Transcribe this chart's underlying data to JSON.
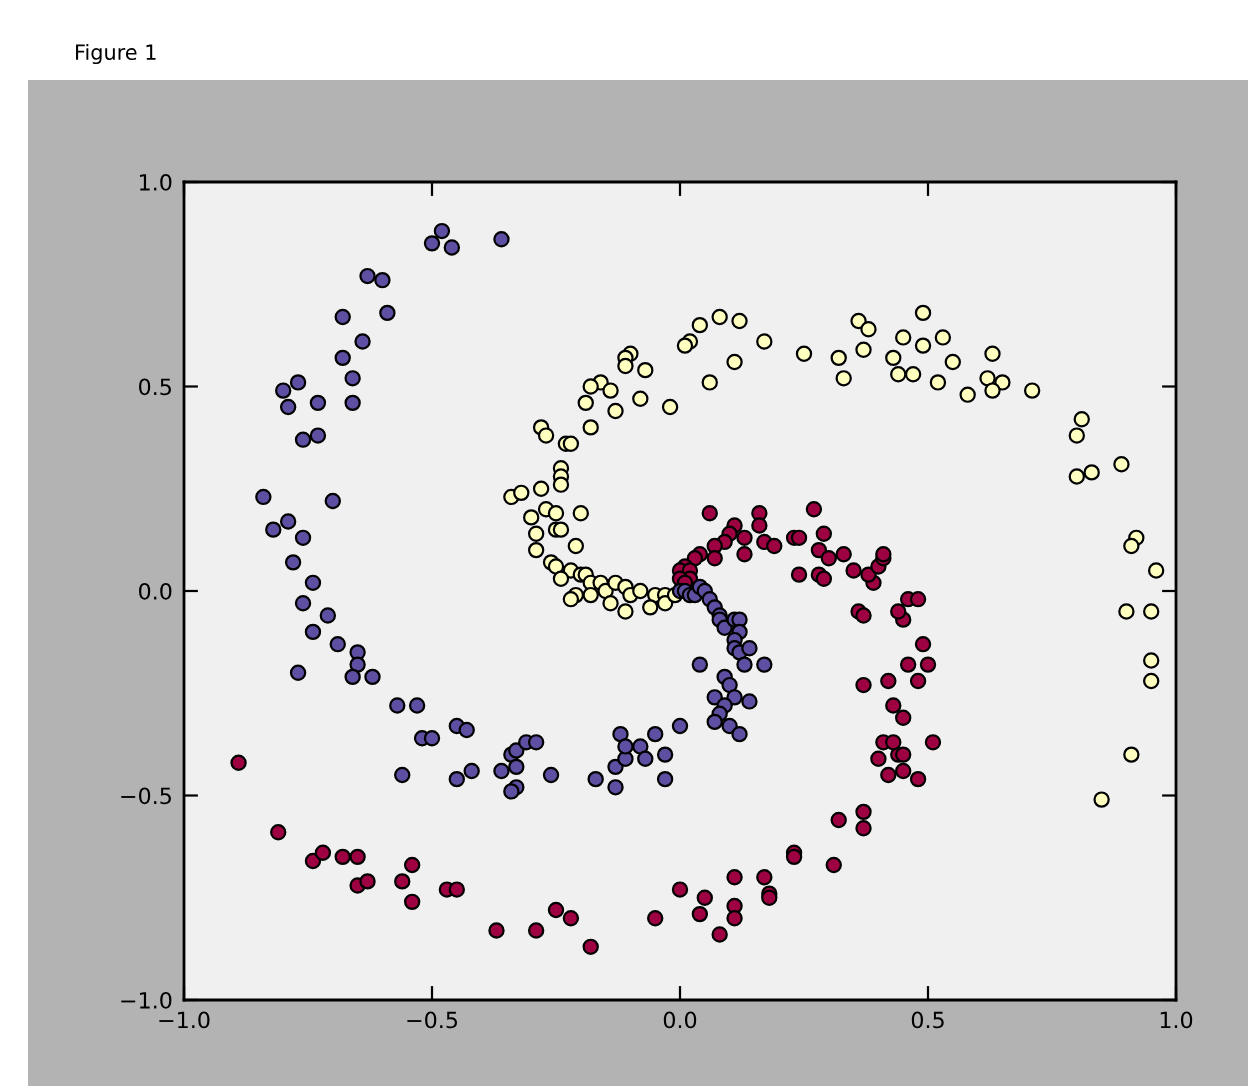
{
  "chart_data": {
    "type": "scatter",
    "annotations": [
      "Figure 1"
    ],
    "xlim": [
      -1.0,
      1.0
    ],
    "ylim": [
      -1.0,
      1.0
    ],
    "xticks": [
      {
        "value": -1.0,
        "label": "−1.0"
      },
      {
        "value": -0.5,
        "label": "−0.5"
      },
      {
        "value": 0.0,
        "label": "0.0"
      },
      {
        "value": 0.5,
        "label": "0.5"
      },
      {
        "value": 1.0,
        "label": "1.0"
      }
    ],
    "yticks": [
      {
        "value": -1.0,
        "label": "−1.0"
      },
      {
        "value": -0.5,
        "label": "−0.5"
      },
      {
        "value": 0.0,
        "label": "0.0"
      },
      {
        "value": 0.5,
        "label": "0.5"
      },
      {
        "value": 1.0,
        "label": "1.0"
      }
    ],
    "marker": "circle",
    "grid": false,
    "series": [
      {
        "color": "#9e0142",
        "x": [
          -0.89,
          -0.81,
          -0.74,
          -0.72,
          -0.68,
          -0.65,
          -0.65,
          -0.63,
          -0.56,
          -0.54,
          -0.54,
          -0.47,
          -0.45,
          -0.37,
          -0.29,
          -0.25,
          -0.22,
          -0.18,
          -0.05,
          0.0,
          0.04,
          0.05,
          0.08,
          0.11,
          0.11,
          0.11,
          0.17,
          0.18,
          0.18,
          0.23,
          0.23,
          0.31,
          0.32,
          0.37,
          0.37,
          0.42,
          0.45,
          0.48,
          0.4,
          0.44,
          0.45,
          0.41,
          0.43,
          0.51,
          0.45,
          0.43,
          0.37,
          0.42,
          0.48,
          0.46,
          0.5,
          0.49,
          0.45,
          0.44,
          0.36,
          0.37,
          0.46,
          0.48,
          0.39,
          0.33,
          0.35,
          0.38,
          0.4,
          0.41,
          0.41,
          0.06,
          0.16,
          0.16,
          0.27,
          0.11,
          0.1,
          0.13,
          0.09,
          0.07,
          0.07,
          0.13,
          0.17,
          0.19,
          0.23,
          0.24,
          0.29,
          0.28,
          0.3,
          0.24,
          0.28,
          0.29,
          0.04,
          0.03,
          0.01,
          0.0,
          0.02,
          0.02,
          0.0,
          0.01
        ],
        "values": [
          -0.42,
          -0.59,
          -0.66,
          -0.64,
          -0.65,
          -0.65,
          -0.72,
          -0.71,
          -0.71,
          -0.67,
          -0.76,
          -0.73,
          -0.73,
          -0.83,
          -0.83,
          -0.78,
          -0.8,
          -0.87,
          -0.8,
          -0.73,
          -0.79,
          -0.75,
          -0.84,
          -0.77,
          -0.8,
          -0.7,
          -0.7,
          -0.74,
          -0.75,
          -0.64,
          -0.65,
          -0.67,
          -0.56,
          -0.54,
          -0.58,
          -0.45,
          -0.44,
          -0.46,
          -0.41,
          -0.4,
          -0.4,
          -0.37,
          -0.37,
          -0.37,
          -0.31,
          -0.28,
          -0.23,
          -0.22,
          -0.22,
          -0.18,
          -0.18,
          -0.13,
          -0.07,
          -0.05,
          -0.05,
          -0.06,
          -0.02,
          -0.02,
          0.02,
          0.09,
          0.05,
          0.04,
          0.06,
          0.08,
          0.09,
          0.19,
          0.19,
          0.16,
          0.2,
          0.16,
          0.14,
          0.13,
          0.12,
          0.11,
          0.08,
          0.09,
          0.12,
          0.11,
          0.13,
          0.13,
          0.14,
          0.1,
          0.08,
          0.04,
          0.04,
          0.03,
          0.09,
          0.08,
          0.06,
          0.05,
          0.05,
          0.03,
          0.03,
          0.02
        ]
      },
      {
        "color": "#ffffbf",
        "x": [
          0.9,
          0.95,
          0.95,
          0.95,
          0.91,
          0.85,
          0.49,
          0.36,
          0.38,
          0.45,
          0.53,
          0.49,
          0.37,
          0.63,
          0.43,
          0.32,
          0.55,
          0.33,
          0.44,
          0.47,
          0.52,
          0.62,
          0.65,
          0.63,
          0.58,
          0.71,
          0.81,
          0.8,
          0.8,
          0.83,
          0.89,
          0.92,
          0.91,
          0.96,
          0.08,
          0.12,
          0.04,
          0.17,
          0.02,
          0.01,
          0.25,
          0.11,
          0.06,
          -0.1,
          -0.11,
          -0.11,
          -0.07,
          -0.16,
          -0.18,
          -0.14,
          -0.08,
          -0.19,
          -0.02,
          -0.13,
          -0.18,
          -0.28,
          -0.27,
          -0.23,
          -0.22,
          -0.24,
          -0.24,
          -0.24,
          -0.28,
          -0.34,
          -0.32,
          -0.3,
          -0.27,
          -0.25,
          -0.2,
          -0.25,
          -0.24,
          -0.29,
          -0.29,
          -0.21,
          -0.26,
          -0.25,
          -0.22,
          -0.2,
          -0.19,
          -0.18,
          -0.16,
          -0.15,
          -0.13,
          -0.24,
          -0.21,
          -0.18,
          -0.11,
          -0.1,
          -0.08,
          -0.05,
          -0.03,
          -0.22,
          -0.14,
          -0.11,
          -0.06,
          -0.03,
          -0.01
        ],
        "values": [
          -0.05,
          -0.05,
          -0.17,
          -0.22,
          -0.4,
          -0.51,
          0.68,
          0.66,
          0.64,
          0.62,
          0.62,
          0.6,
          0.59,
          0.58,
          0.57,
          0.57,
          0.56,
          0.52,
          0.53,
          0.53,
          0.51,
          0.52,
          0.51,
          0.49,
          0.48,
          0.49,
          0.42,
          0.38,
          0.28,
          0.29,
          0.31,
          0.13,
          0.11,
          0.05,
          0.67,
          0.66,
          0.65,
          0.61,
          0.61,
          0.6,
          0.58,
          0.56,
          0.51,
          0.58,
          0.57,
          0.55,
          0.54,
          0.51,
          0.5,
          0.49,
          0.47,
          0.46,
          0.45,
          0.44,
          0.4,
          0.4,
          0.38,
          0.36,
          0.36,
          0.3,
          0.28,
          0.26,
          0.25,
          0.23,
          0.24,
          0.18,
          0.2,
          0.19,
          0.19,
          0.15,
          0.15,
          0.14,
          0.1,
          0.11,
          0.07,
          0.06,
          0.05,
          0.04,
          0.04,
          0.02,
          0.02,
          0.0,
          0.02,
          0.03,
          -0.01,
          -0.01,
          0.01,
          -0.01,
          0.0,
          -0.01,
          -0.01,
          -0.02,
          -0.03,
          -0.05,
          -0.04,
          -0.03,
          -0.01
        ]
      },
      {
        "color": "#5e4fa2",
        "x": [
          -0.48,
          -0.5,
          -0.46,
          -0.36,
          -0.63,
          -0.6,
          -0.59,
          -0.68,
          -0.64,
          -0.68,
          -0.66,
          -0.66,
          -0.73,
          -0.77,
          -0.8,
          -0.79,
          -0.76,
          -0.73,
          -0.84,
          -0.7,
          -0.79,
          -0.82,
          -0.76,
          -0.78,
          -0.74,
          -0.76,
          -0.71,
          -0.74,
          -0.69,
          -0.65,
          -0.65,
          -0.77,
          -0.66,
          -0.62,
          -0.57,
          -0.53,
          -0.45,
          -0.43,
          -0.52,
          -0.5,
          -0.56,
          -0.45,
          -0.42,
          -0.36,
          -0.34,
          -0.33,
          -0.31,
          -0.29,
          -0.33,
          -0.33,
          -0.34,
          -0.26,
          -0.17,
          -0.13,
          -0.13,
          -0.11,
          -0.12,
          -0.11,
          -0.08,
          -0.05,
          -0.07,
          -0.03,
          -0.03,
          0.0,
          0.0,
          0.01,
          0.02,
          0.03,
          0.04,
          0.05,
          0.06,
          0.07,
          0.08,
          0.08,
          0.09,
          0.11,
          0.12,
          0.12,
          0.11,
          0.11,
          0.12,
          0.13,
          0.14,
          0.17,
          0.04,
          0.09,
          0.1,
          0.07,
          0.11,
          0.14,
          0.09,
          0.08,
          0.07,
          0.1,
          0.12
        ],
        "values": [
          0.88,
          0.85,
          0.84,
          0.86,
          0.77,
          0.76,
          0.68,
          0.67,
          0.61,
          0.57,
          0.52,
          0.46,
          0.46,
          0.51,
          0.49,
          0.45,
          0.37,
          0.38,
          0.23,
          0.22,
          0.17,
          0.15,
          0.13,
          0.07,
          0.02,
          -0.03,
          -0.06,
          -0.1,
          -0.13,
          -0.15,
          -0.18,
          -0.2,
          -0.21,
          -0.21,
          -0.28,
          -0.28,
          -0.33,
          -0.34,
          -0.36,
          -0.36,
          -0.45,
          -0.46,
          -0.44,
          -0.44,
          -0.4,
          -0.39,
          -0.37,
          -0.37,
          -0.43,
          -0.48,
          -0.49,
          -0.45,
          -0.46,
          -0.48,
          -0.43,
          -0.41,
          -0.35,
          -0.38,
          -0.38,
          -0.35,
          -0.41,
          -0.4,
          -0.46,
          -0.33,
          0.0,
          0.0,
          -0.01,
          -0.01,
          0.01,
          0.0,
          -0.02,
          -0.04,
          -0.06,
          -0.07,
          -0.09,
          -0.07,
          -0.07,
          -0.1,
          -0.12,
          -0.14,
          -0.15,
          -0.18,
          -0.14,
          -0.18,
          -0.18,
          -0.21,
          -0.23,
          -0.26,
          -0.26,
          -0.27,
          -0.28,
          -0.3,
          -0.32,
          -0.33,
          -0.35
        ]
      }
    ]
  }
}
